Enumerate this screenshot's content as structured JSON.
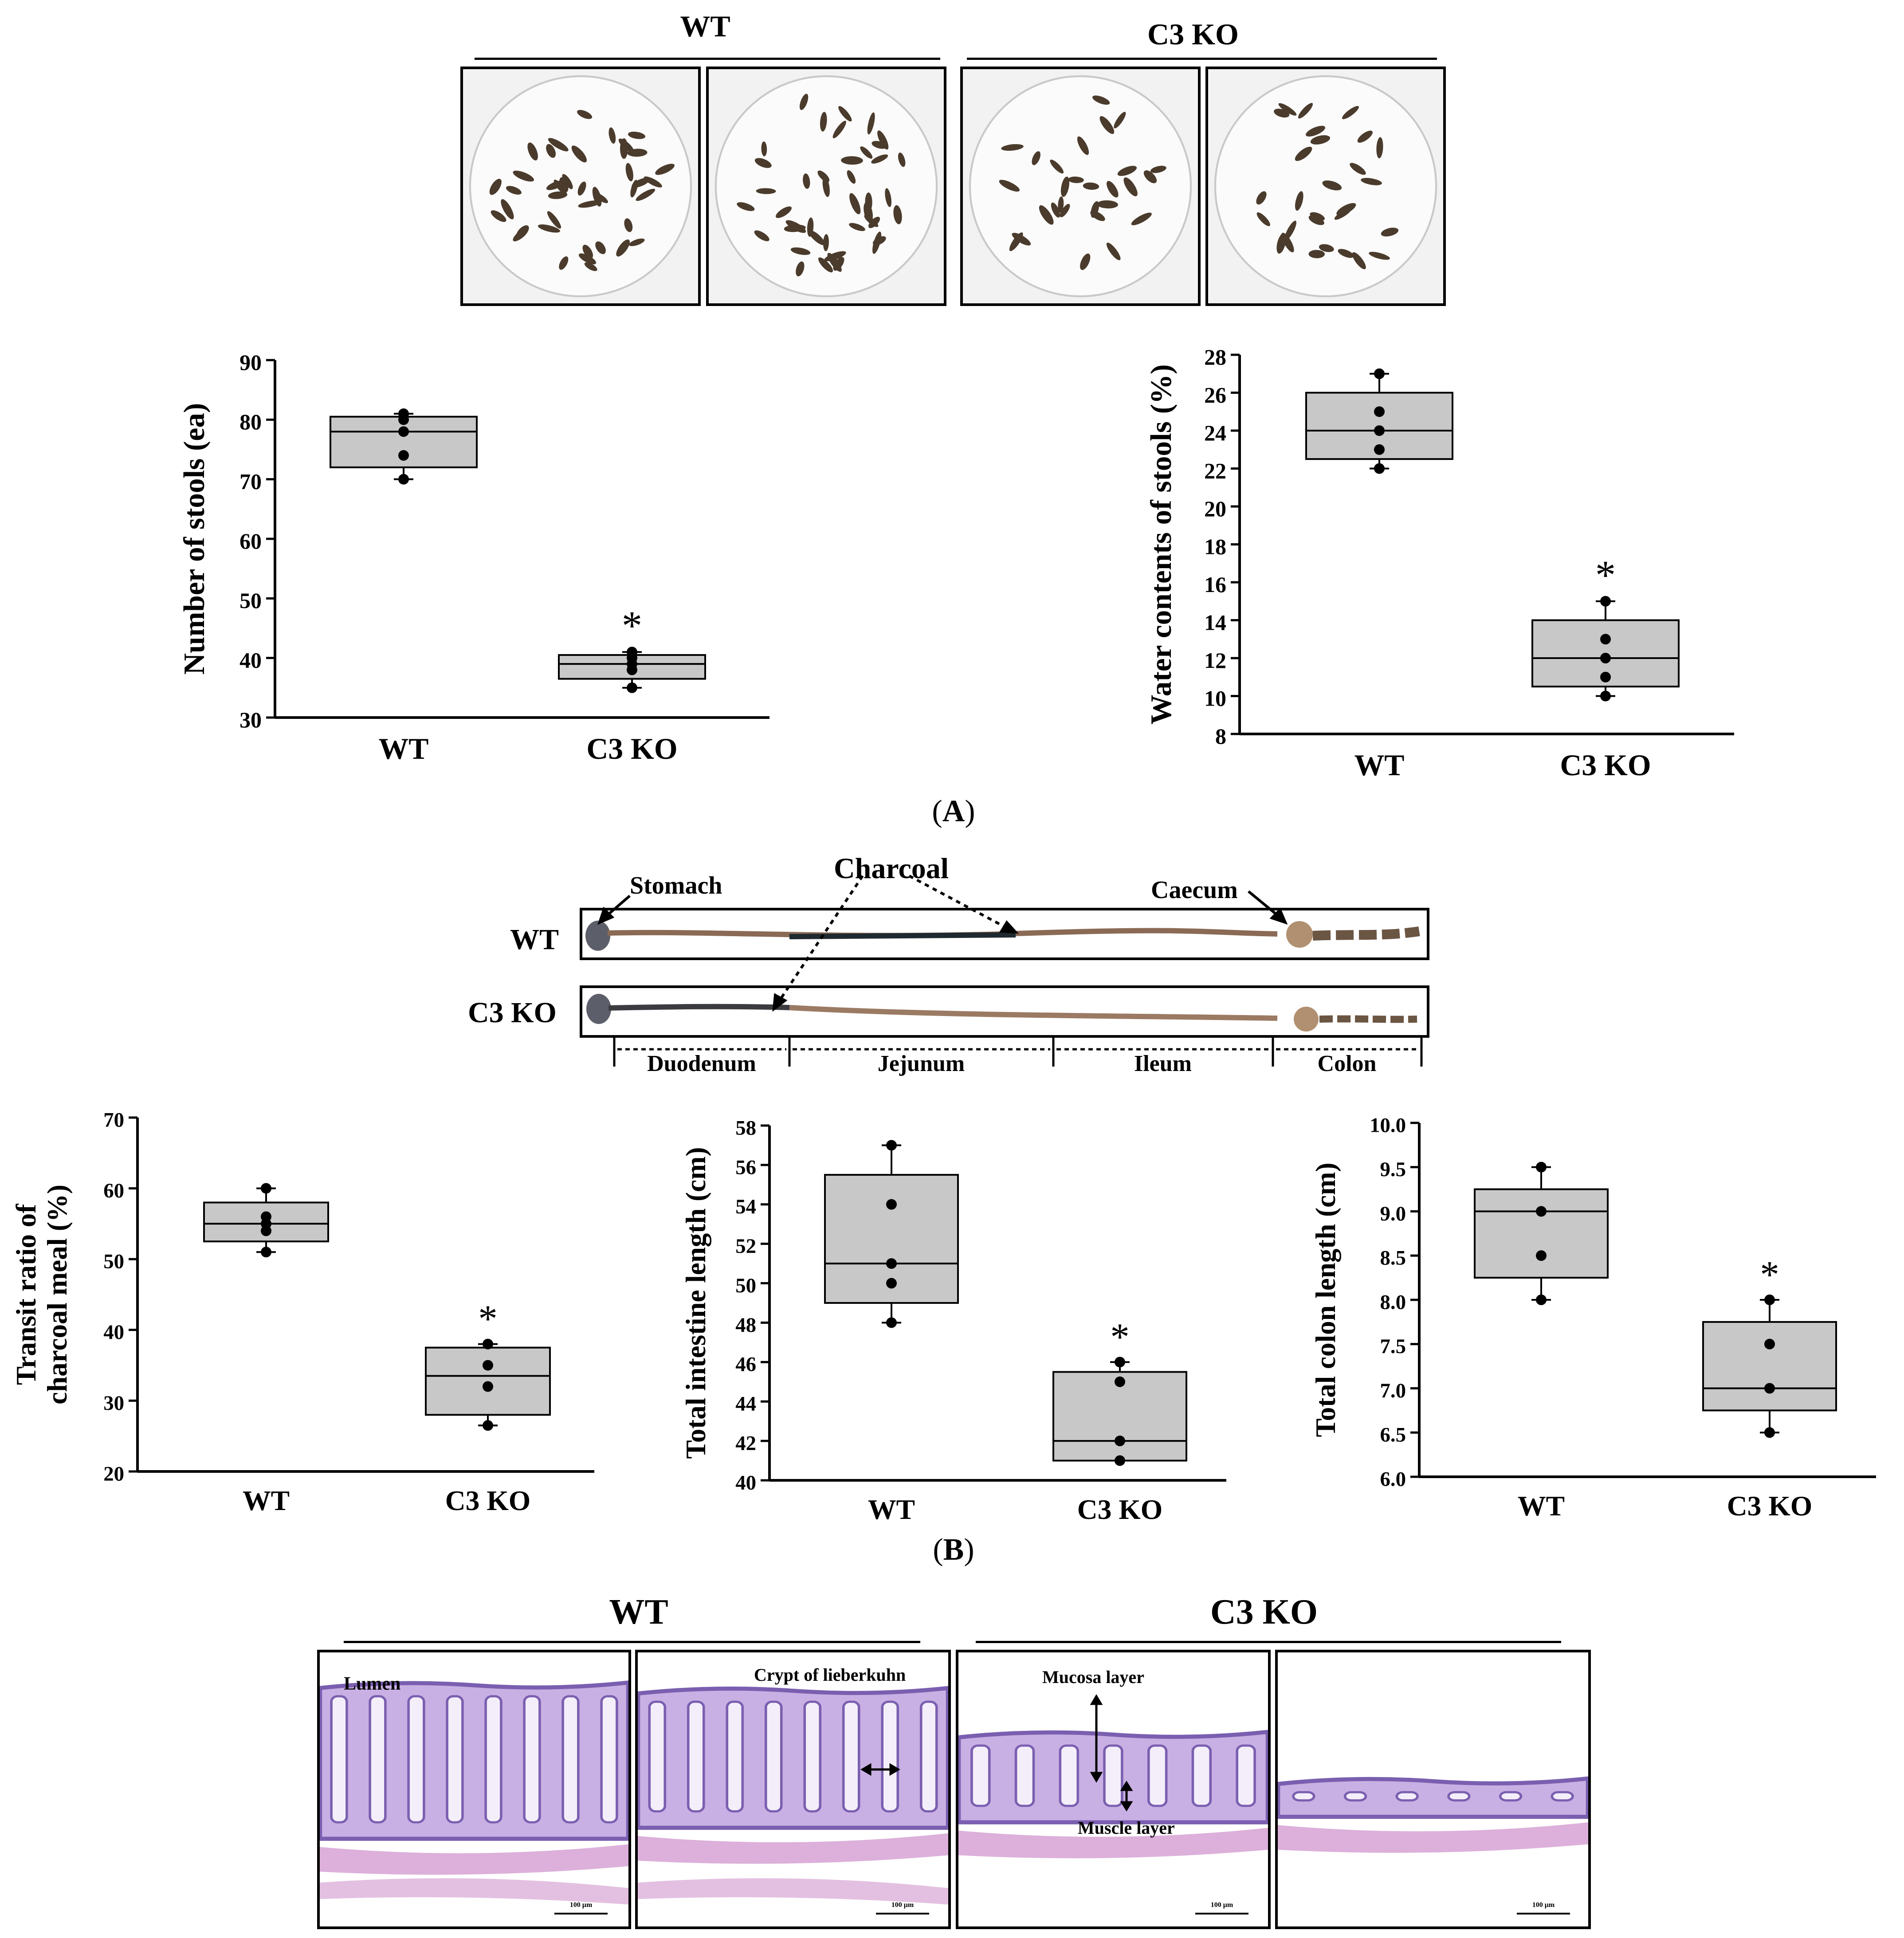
{
  "panel_a": {
    "letter_open": "(",
    "letter": "A",
    "letter_close": ")",
    "groups": [
      "WT",
      "C3 KO"
    ]
  },
  "panel_b": {
    "letter_open": "(",
    "letter": "B",
    "letter_close": ")",
    "rows": [
      "WT",
      "C3 KO"
    ],
    "labels": {
      "stomach": "Stomach",
      "charcoal": "Charcoal",
      "caecum": "Caecum"
    },
    "segments": [
      "Duodenum",
      "Jejunum",
      "Ileum",
      "Colon"
    ]
  },
  "panel_c": {
    "groups": [
      "WT",
      "C3 KO"
    ],
    "labels": {
      "lumen": "Lumen",
      "crypt": "Crypt of lieberkuhn",
      "mucosa": "Mucosa layer",
      "muscle": "Muscle layer",
      "scale": "100 μm"
    }
  },
  "colors": {
    "box_fill": "#c8c8c8",
    "stool": "#4a3b2c",
    "tissue_pink": "#dcb0da",
    "tissue_purple": "#7a5fb0"
  },
  "chart_data": [
    {
      "type": "box",
      "ylabel": "Number of stools (ea)",
      "categories": [
        "WT",
        "C3 KO"
      ],
      "ylim": [
        30,
        90
      ],
      "yticks": [
        30,
        40,
        50,
        60,
        70,
        80,
        90
      ],
      "tick_decimals": 0,
      "boxes": [
        {
          "q1": 72,
          "median": 78,
          "q3": 80.5,
          "min": 70,
          "max": 81,
          "points": [
            70,
            74,
            78,
            80,
            81
          ],
          "sig": ""
        },
        {
          "q1": 36.5,
          "median": 39,
          "q3": 40.5,
          "min": 35,
          "max": 41,
          "points": [
            35,
            38,
            39,
            40,
            41
          ],
          "sig": "*"
        }
      ]
    },
    {
      "type": "box",
      "ylabel": "Water contents of stools (%)",
      "categories": [
        "WT",
        "C3 KO"
      ],
      "ylim": [
        8,
        28
      ],
      "yticks": [
        8,
        10,
        12,
        14,
        16,
        18,
        20,
        22,
        24,
        26,
        28
      ],
      "tick_decimals": 0,
      "boxes": [
        {
          "q1": 22.5,
          "median": 24,
          "q3": 26,
          "min": 22,
          "max": 27,
          "points": [
            22,
            23,
            24,
            25,
            27
          ],
          "sig": ""
        },
        {
          "q1": 10.5,
          "median": 12,
          "q3": 14,
          "min": 10,
          "max": 15,
          "points": [
            10,
            11,
            12,
            13,
            15
          ],
          "sig": "*"
        }
      ]
    },
    {
      "type": "box",
      "ylabel": [
        "Transit ratio of",
        "charcoal meal (%)"
      ],
      "categories": [
        "WT",
        "C3 KO"
      ],
      "ylim": [
        20,
        70
      ],
      "yticks": [
        20,
        30,
        40,
        50,
        60,
        70
      ],
      "tick_decimals": 0,
      "boxes": [
        {
          "q1": 52.5,
          "median": 55,
          "q3": 58,
          "min": 51,
          "max": 60,
          "points": [
            51,
            54,
            55,
            56,
            60
          ],
          "sig": ""
        },
        {
          "q1": 28,
          "median": 33.5,
          "q3": 37.5,
          "min": 26.5,
          "max": 38,
          "points": [
            26.5,
            32,
            35,
            38
          ],
          "sig": "*"
        }
      ]
    },
    {
      "type": "box",
      "ylabel": "Total intestine length (cm)",
      "categories": [
        "WT",
        "C3 KO"
      ],
      "ylim": [
        40,
        58
      ],
      "yticks": [
        40,
        42,
        44,
        46,
        48,
        50,
        52,
        54,
        56,
        58
      ],
      "tick_decimals": 0,
      "boxes": [
        {
          "q1": 49,
          "median": 51,
          "q3": 55.5,
          "min": 48,
          "max": 57,
          "points": [
            48,
            50,
            51,
            54,
            57
          ],
          "sig": ""
        },
        {
          "q1": 41,
          "median": 42,
          "q3": 45.5,
          "min": 41,
          "max": 46,
          "points": [
            41,
            42,
            45,
            46
          ],
          "sig": "*"
        }
      ]
    },
    {
      "type": "box",
      "ylabel": "Total colon length (cm)",
      "categories": [
        "WT",
        "C3 KO"
      ],
      "ylim": [
        6.0,
        10.0
      ],
      "yticks": [
        6.0,
        6.5,
        7.0,
        7.5,
        8.0,
        8.5,
        9.0,
        9.5,
        10.0
      ],
      "tick_decimals": 1,
      "boxes": [
        {
          "q1": 8.25,
          "median": 9.0,
          "q3": 9.25,
          "min": 8.0,
          "max": 9.5,
          "points": [
            8.0,
            8.5,
            9.0,
            9.5
          ],
          "sig": ""
        },
        {
          "q1": 6.75,
          "median": 7.0,
          "q3": 7.75,
          "min": 6.5,
          "max": 8.0,
          "points": [
            6.5,
            7.0,
            7.5,
            8.0
          ],
          "sig": "*"
        }
      ]
    }
  ]
}
